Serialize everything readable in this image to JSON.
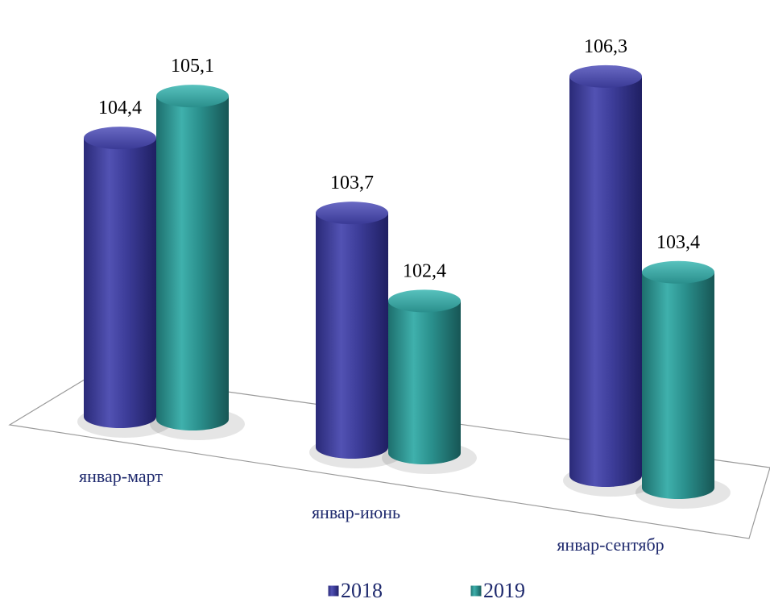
{
  "chart_data": {
    "type": "bar",
    "style": "3d-cylinder",
    "categories": [
      "январ-март",
      "январ-июнь",
      "январ-сентябр"
    ],
    "series": [
      {
        "name": "2018",
        "color": "#3b3b95",
        "values": [
          104.4,
          103.7,
          106.3
        ]
      },
      {
        "name": "2019",
        "color": "#2a8f8c",
        "values": [
          105.1,
          102.4,
          103.4
        ]
      }
    ],
    "value_labels": [
      [
        "104,4",
        "103,7",
        "106,3"
      ],
      [
        "105,1",
        "102,4",
        "103,4"
      ]
    ],
    "ylim": [
      100.0,
      106.6
    ],
    "legend_position": "bottom",
    "grid": false
  }
}
